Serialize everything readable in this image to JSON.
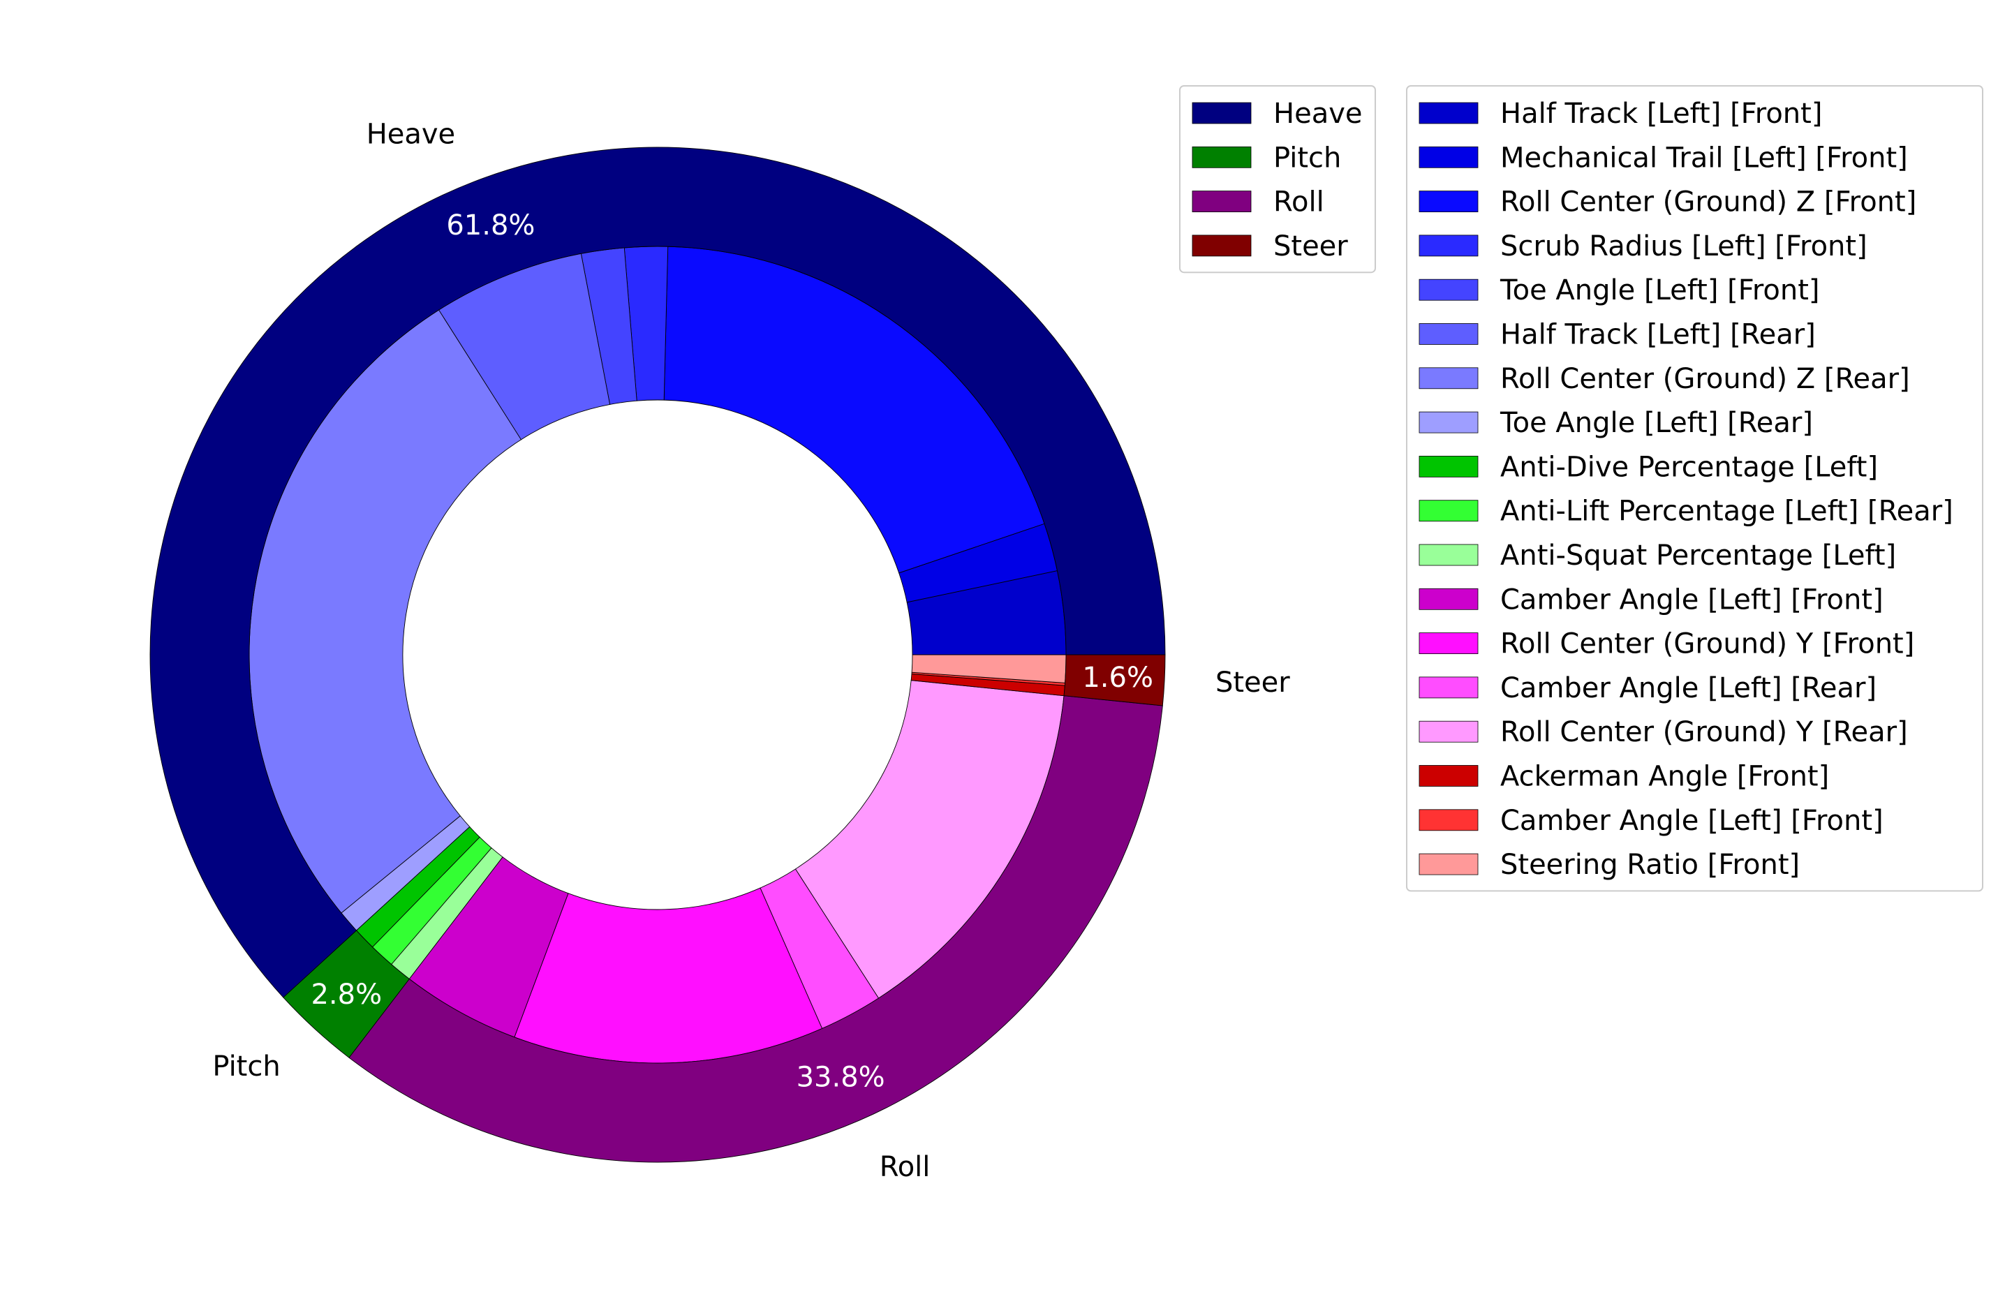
{
  "chart_data": {
    "type": "pie",
    "subtype": "nested-donut",
    "title": "",
    "start_angle_deg": 0,
    "direction": "counterclockwise",
    "outer_ring": [
      {
        "label": "Heave",
        "value": 61.8,
        "pct_label": "61.8%",
        "color": "#000080"
      },
      {
        "label": "Pitch",
        "value": 2.8,
        "pct_label": "2.8%",
        "color": "#008000"
      },
      {
        "label": "Roll",
        "value": 33.8,
        "pct_label": "33.8%",
        "color": "#800080"
      },
      {
        "label": "Steer",
        "value": 1.6,
        "pct_label": "1.6%",
        "color": "#800000"
      }
    ],
    "inner_ring": [
      {
        "label": "Half Track [Left] [Front]",
        "group": "Heave",
        "value": 3.3,
        "color": "#0000cc"
      },
      {
        "label": "Mechanical Trail [Left] [Front]",
        "group": "Heave",
        "value": 1.9,
        "color": "#0000e6"
      },
      {
        "label": "Roll Center (Ground) Z [Front]",
        "group": "Heave",
        "value": 19.4,
        "color": "#0a0aff"
      },
      {
        "label": "Scrub Radius [Left] [Front]",
        "group": "Heave",
        "value": 1.7,
        "color": "#2a2aff"
      },
      {
        "label": "Toe Angle [Left] [Front]",
        "group": "Heave",
        "value": 1.7,
        "color": "#4444ff"
      },
      {
        "label": "Half Track [Left] [Rear]",
        "group": "Heave",
        "value": 6.0,
        "color": "#5e5eff"
      },
      {
        "label": "Roll Center (Ground) Z [Rear]",
        "group": "Heave",
        "value": 26.9,
        "color": "#7a7aff"
      },
      {
        "label": "Toe Angle [Left] [Rear]",
        "group": "Heave",
        "value": 0.9,
        "color": "#9e9eff"
      },
      {
        "label": "Anti-Dive Percentage [Left]",
        "group": "Pitch",
        "value": 0.9,
        "color": "#00c400"
      },
      {
        "label": "Anti-Lift Percentage [Left] [Rear]",
        "group": "Pitch",
        "value": 1.0,
        "color": "#33ff33"
      },
      {
        "label": "Anti-Squat Percentage [Left]",
        "group": "Pitch",
        "value": 0.9,
        "color": "#99ff99"
      },
      {
        "label": "Camber Angle [Left] [Front]",
        "group": "Roll",
        "value": 4.7,
        "color": "#cc00cc"
      },
      {
        "label": "Roll Center (Ground) Y [Front]",
        "group": "Roll",
        "value": 12.3,
        "color": "#ff0fff"
      },
      {
        "label": "Camber Angle [Left] [Rear]",
        "group": "Roll",
        "value": 2.5,
        "color": "#ff4dff"
      },
      {
        "label": "Roll Center (Ground) Y [Rear]",
        "group": "Roll",
        "value": 14.3,
        "color": "#ff99ff"
      },
      {
        "label": "Ackerman Angle [Front]",
        "group": "Steer",
        "value": 0.4,
        "color": "#cc0000"
      },
      {
        "label": "Camber Angle [Left] [Front]",
        "group": "Steer",
        "value": 0.1,
        "color": "#ff3333"
      },
      {
        "label": "Steering Ratio [Front]",
        "group": "Steer",
        "value": 1.1,
        "color": "#ff9999"
      }
    ],
    "legends": {
      "placement": "right",
      "outer_legend": [
        "Heave",
        "Pitch",
        "Roll",
        "Steer"
      ],
      "inner_legend": [
        "Half Track [Left] [Front]",
        "Mechanical Trail [Left] [Front]",
        "Roll Center (Ground) Z [Front]",
        "Scrub Radius [Left] [Front]",
        "Toe Angle [Left] [Front]",
        "Half Track [Left] [Rear]",
        "Roll Center (Ground) Z [Rear]",
        "Toe Angle [Left] [Rear]",
        "Anti-Dive Percentage [Left]",
        "Anti-Lift Percentage [Left] [Rear]",
        "Anti-Squat Percentage [Left]",
        "Camber Angle [Left] [Front]",
        "Roll Center (Ground) Y [Front]",
        "Camber Angle [Left] [Rear]",
        "Roll Center (Ground) Y [Rear]",
        "Ackerman Angle [Front]",
        "Camber Angle [Left] [Front]",
        "Steering Ratio [Front]"
      ]
    }
  }
}
